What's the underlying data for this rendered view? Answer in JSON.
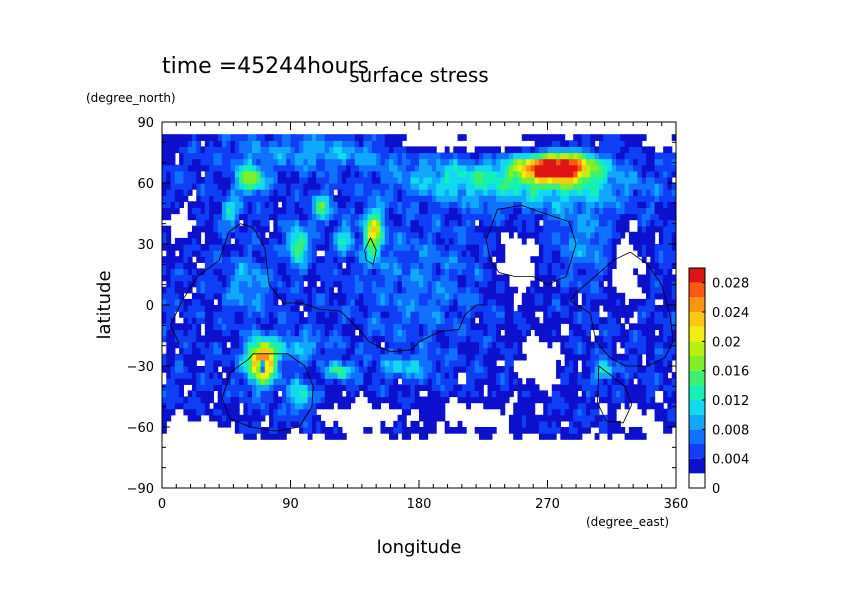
{
  "chart_data": {
    "type": "heatmap",
    "time_label": "time =45244hours",
    "title": "surface stress",
    "xlabel": "longitude",
    "ylabel": "latitude",
    "x_unit": "(degree_east)",
    "y_unit": "(degree_north)",
    "xlim": [
      0,
      360
    ],
    "ylim": [
      -90,
      90
    ],
    "x_ticks": [
      "0",
      "90",
      "180",
      "270",
      "360"
    ],
    "y_ticks": [
      "90",
      "60",
      "30",
      "0",
      "−30",
      "−60",
      "−90"
    ],
    "colorbar": {
      "range": [
        0,
        0.03
      ],
      "tick_labels": [
        "0",
        "0.004",
        "0.008",
        "0.012",
        "0.016",
        "0.02",
        "0.024",
        "0.028"
      ],
      "levels": [
        {
          "lo": 0.0,
          "color": "#ffffff"
        },
        {
          "lo": 0.002,
          "color": "#0d10cc"
        },
        {
          "lo": 0.004,
          "color": "#0f3ef5"
        },
        {
          "lo": 0.006,
          "color": "#1070ff"
        },
        {
          "lo": 0.008,
          "color": "#10a8ff"
        },
        {
          "lo": 0.01,
          "color": "#12d8f2"
        },
        {
          "lo": 0.012,
          "color": "#14f0b8"
        },
        {
          "lo": 0.014,
          "color": "#3cf070"
        },
        {
          "lo": 0.016,
          "color": "#7ef028"
        },
        {
          "lo": 0.018,
          "color": "#b8f010"
        },
        {
          "lo": 0.02,
          "color": "#f0f010"
        },
        {
          "lo": 0.022,
          "color": "#ffc810"
        },
        {
          "lo": 0.024,
          "color": "#ff9410"
        },
        {
          "lo": 0.026,
          "color": "#ff5810"
        },
        {
          "lo": 0.028,
          "color": "#e01414"
        }
      ]
    },
    "background_stress": 0.004,
    "hotspots": [
      {
        "lon": 276,
        "lat": 68,
        "slon": 26,
        "slat": 7,
        "amp": 0.028
      },
      {
        "lon": 282,
        "lat": 58,
        "slon": 55,
        "slat": 12,
        "amp": 0.007
      },
      {
        "lon": 210,
        "lat": 62,
        "slon": 45,
        "slat": 10,
        "amp": 0.007
      },
      {
        "lon": 110,
        "lat": 75,
        "slon": 60,
        "slat": 8,
        "amp": 0.005
      },
      {
        "lon": 62,
        "lat": 62,
        "slon": 10,
        "slat": 7,
        "amp": 0.014
      },
      {
        "lon": 48,
        "lat": 46,
        "slon": 7,
        "slat": 6,
        "amp": 0.008
      },
      {
        "lon": 95,
        "lat": 30,
        "slon": 7,
        "slat": 9,
        "amp": 0.013
      },
      {
        "lon": 112,
        "lat": 48,
        "slon": 7,
        "slat": 7,
        "amp": 0.01
      },
      {
        "lon": 128,
        "lat": 33,
        "slon": 6,
        "slat": 6,
        "amp": 0.009
      },
      {
        "lon": 148,
        "lat": 36,
        "slon": 7,
        "slat": 12,
        "amp": 0.016
      },
      {
        "lon": 60,
        "lat": 10,
        "slon": 16,
        "slat": 14,
        "amp": 0.005
      },
      {
        "lon": 70,
        "lat": -28,
        "slon": 10,
        "slat": 10,
        "amp": 0.026
      },
      {
        "lon": 95,
        "lat": -20,
        "slon": 20,
        "slat": 6,
        "amp": 0.006
      },
      {
        "lon": 125,
        "lat": -32,
        "slon": 8,
        "slat": 4,
        "amp": 0.012
      },
      {
        "lon": 170,
        "lat": -30,
        "slon": 20,
        "slat": 5,
        "amp": 0.006
      },
      {
        "lon": 97,
        "lat": -45,
        "slon": 8,
        "slat": 8,
        "amp": 0.01
      },
      {
        "lon": 310,
        "lat": -32,
        "slon": 7,
        "slat": 4,
        "amp": 0.01
      },
      {
        "lon": 300,
        "lat": 30,
        "slon": 25,
        "slat": 15,
        "amp": 0.004
      },
      {
        "lon": 180,
        "lat": 10,
        "slon": 40,
        "slat": 30,
        "amp": 0.003
      }
    ],
    "calm_zones": [
      {
        "lon": 325,
        "lat": 20,
        "slon": 12,
        "slat": 22
      },
      {
        "lon": 250,
        "lat": 20,
        "slon": 14,
        "slat": 18
      },
      {
        "lon": 265,
        "lat": -28,
        "slon": 16,
        "slat": 16
      },
      {
        "lon": 22,
        "lat": -62,
        "slon": 30,
        "slat": 8
      },
      {
        "lon": 140,
        "lat": -55,
        "slon": 30,
        "slat": 8
      },
      {
        "lon": 220,
        "lat": -55,
        "slon": 30,
        "slat": 9
      },
      {
        "lon": 150,
        "lat": -72,
        "slon": 60,
        "slat": 6
      },
      {
        "lon": 70,
        "lat": -30,
        "slon": 3,
        "slat": 3
      },
      {
        "lon": 330,
        "lat": -55,
        "slon": 16,
        "slat": 8
      },
      {
        "lon": 12,
        "lat": 40,
        "slon": 12,
        "slat": 10
      },
      {
        "lon": 230,
        "lat": 80,
        "slon": 50,
        "slat": 5
      },
      {
        "lon": 350,
        "lat": 80,
        "slon": 20,
        "slat": 5
      },
      {
        "lon": 180,
        "lat": 80,
        "slon": 20,
        "slat": 4
      }
    ],
    "continent_outlines": [
      [
        [
          12,
          -19
        ],
        [
          6,
          -10
        ],
        [
          14,
          2
        ],
        [
          25,
          14
        ],
        [
          40,
          22
        ],
        [
          47,
          36
        ],
        [
          55,
          40
        ],
        [
          64,
          38
        ],
        [
          72,
          28
        ],
        [
          75,
          10
        ],
        [
          85,
          1
        ],
        [
          98,
          1
        ],
        [
          110,
          -2
        ],
        [
          125,
          -3
        ],
        [
          138,
          -12
        ],
        [
          145,
          -18
        ],
        [
          160,
          -23
        ],
        [
          175,
          -22
        ],
        [
          180,
          -18
        ],
        [
          195,
          -13
        ],
        [
          208,
          -12
        ],
        [
          212,
          -5
        ],
        [
          220,
          0
        ],
        [
          226,
          0
        ]
      ],
      [
        [
          230,
          22
        ],
        [
          227,
          32
        ],
        [
          235,
          47
        ],
        [
          252,
          49
        ],
        [
          268,
          45
        ],
        [
          285,
          41
        ],
        [
          290,
          30
        ],
        [
          283,
          14
        ],
        [
          270,
          10
        ],
        [
          260,
          14
        ],
        [
          247,
          14
        ],
        [
          236,
          16
        ],
        [
          230,
          22
        ]
      ],
      [
        [
          142,
          27
        ],
        [
          146,
          33
        ],
        [
          150,
          27
        ],
        [
          148,
          20
        ],
        [
          143,
          22
        ],
        [
          142,
          27
        ]
      ],
      [
        [
          60,
          -27
        ],
        [
          48,
          -33
        ],
        [
          42,
          -46
        ],
        [
          48,
          -56
        ],
        [
          62,
          -60
        ],
        [
          80,
          -62
        ],
        [
          96,
          -60
        ],
        [
          105,
          -50
        ],
        [
          106,
          -40
        ],
        [
          100,
          -30
        ],
        [
          88,
          -24
        ],
        [
          74,
          -24
        ],
        [
          64,
          -24
        ],
        [
          60,
          -27
        ]
      ],
      [
        [
          306,
          -30
        ],
        [
          324,
          -40
        ],
        [
          329,
          -49
        ],
        [
          323,
          -58
        ],
        [
          311,
          -57
        ],
        [
          305,
          -48
        ],
        [
          306,
          -30
        ]
      ],
      [
        [
          286,
          2
        ],
        [
          300,
          -4
        ],
        [
          304,
          -18
        ],
        [
          314,
          -26
        ],
        [
          325,
          -30
        ],
        [
          340,
          -30
        ],
        [
          352,
          -26
        ],
        [
          358,
          -18
        ],
        [
          356,
          -6
        ],
        [
          350,
          10
        ],
        [
          340,
          20
        ],
        [
          328,
          26
        ],
        [
          316,
          22
        ],
        [
          300,
          12
        ],
        [
          290,
          6
        ],
        [
          286,
          2
        ]
      ]
    ]
  }
}
